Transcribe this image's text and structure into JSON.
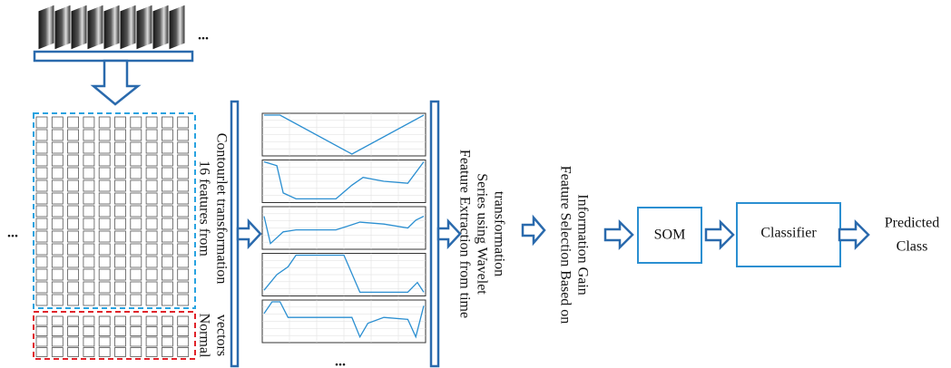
{
  "top_ellipsis": "...",
  "left_ellipsis": "...",
  "features_label": [
    "16 features from",
    "Contourlet transformation"
  ],
  "normal_label": [
    "Normal",
    "vectors"
  ],
  "plots_ellipsis": "...",
  "extraction_label": [
    "Feature Extraction from time",
    "Series using Wavelet",
    "transformation"
  ],
  "selection_label": [
    "Feature Selection Based on",
    "Information Gain"
  ],
  "som": "SOM",
  "classifier": "Classifier",
  "output": [
    "Predicted",
    "Class"
  ]
}
